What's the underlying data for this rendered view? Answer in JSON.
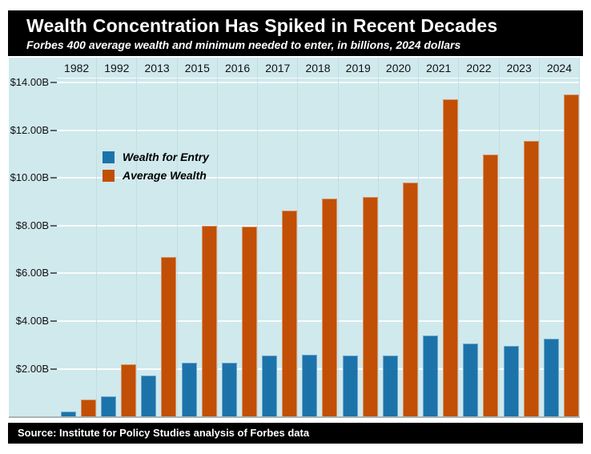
{
  "header": {
    "title": "Wealth Concentration Has Spiked in Recent Decades",
    "subtitle": "Forbes 400 average wealth and minimum needed to enter, in billions, 2024 dollars"
  },
  "footer": {
    "source": "Source: Institute for Policy Studies analysis of Forbes data"
  },
  "colors": {
    "panel_background": "#cfe9ed",
    "header_background": "#000000",
    "header_text": "#ffffff",
    "entry_blue": "#1c73aa",
    "average_orange": "#c24f06",
    "gridline": "#ffffff",
    "column_divider": "#c3dde2"
  },
  "chart_data": {
    "type": "bar",
    "title": "Wealth Concentration Has Spiked in Recent Decades",
    "subtitle": "Forbes 400 average wealth and minimum needed to enter, in billions, 2024 dollars",
    "categories": [
      "1982",
      "1992",
      "2013",
      "2015",
      "2016",
      "2017",
      "2018",
      "2019",
      "2020",
      "2021",
      "2022",
      "2023",
      "2024"
    ],
    "series": [
      {
        "name": "Wealth for Entry",
        "color": "#1c73aa",
        "values": [
          0.2,
          0.85,
          1.7,
          2.25,
          2.25,
          2.55,
          2.6,
          2.55,
          2.55,
          3.4,
          3.05,
          2.95,
          3.25
        ]
      },
      {
        "name": "Average Wealth",
        "color": "#c24f06",
        "values": [
          0.7,
          2.2,
          6.7,
          8.0,
          7.95,
          8.65,
          9.15,
          9.2,
          9.8,
          13.3,
          11.0,
          11.55,
          13.5
        ]
      }
    ],
    "y_ticks": [
      {
        "value": 2,
        "label": "$2.00B"
      },
      {
        "value": 4,
        "label": "$4.00B"
      },
      {
        "value": 6,
        "label": "$6.00B"
      },
      {
        "value": 8,
        "label": "$8.00B"
      },
      {
        "value": 10,
        "label": "$10.00B"
      },
      {
        "value": 12,
        "label": "$12.00B"
      },
      {
        "value": 14,
        "label": "$14.00B"
      }
    ],
    "ylim": [
      0,
      14.25
    ],
    "value_unit": "billions of 2024 dollars",
    "grid": true,
    "legend_position": "upper-left-inside"
  }
}
